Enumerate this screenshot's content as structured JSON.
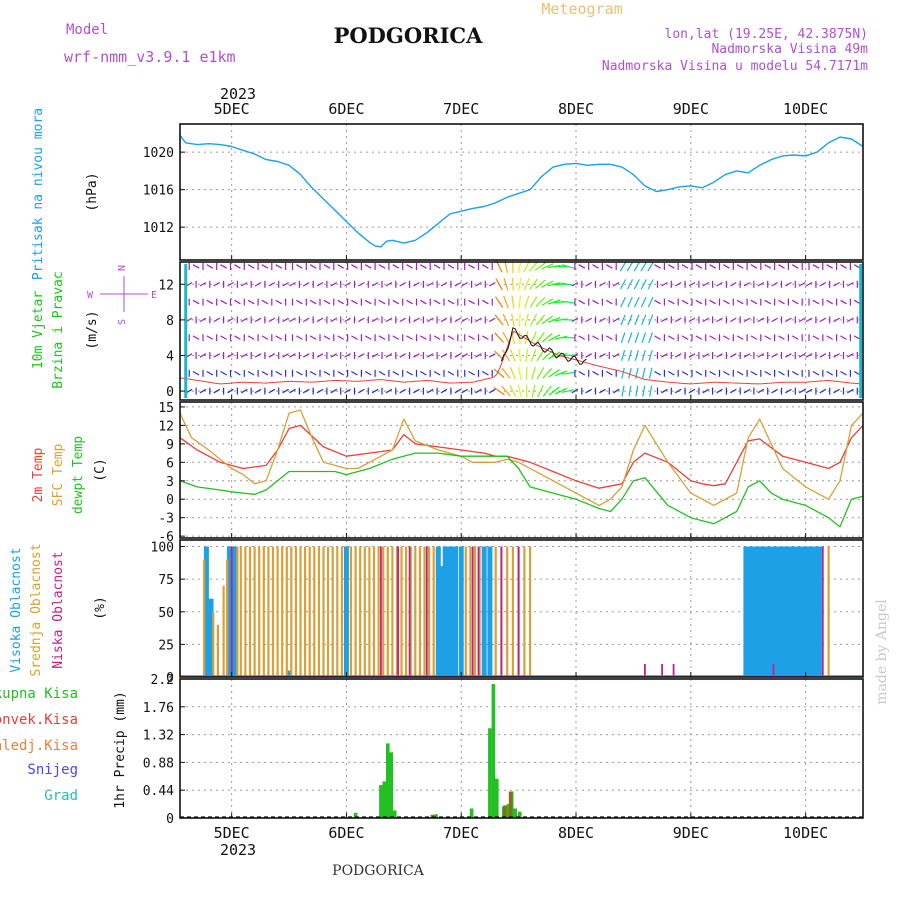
{
  "header": {
    "model_label": "Model",
    "model_name": "wrf-nmm_v3.9.1  e1km",
    "city": "PODGORICA",
    "meteogram": "Meteogram",
    "lonlat": "lon,lat (19.25E, 42.3875N)",
    "elevation": "Nadmorska Visina 49m",
    "model_elevation": "Nadmorska Visina u modelu 54.7171m",
    "year": "2023",
    "footer_city": "PODGORICA",
    "credit": "made by Angel"
  },
  "colors": {
    "pressure": "#1ea0e6",
    "temp2m": "#e8403a",
    "sfc": "#d8a038",
    "dewpt": "#22c022",
    "cloud_high": "#1ea0e6",
    "cloud_mid": "#d8a038",
    "cloud_low": "#c0208a",
    "precip": "#22c022",
    "wind_low": "#2a30d0",
    "wind_mid": "#a020c0"
  },
  "chart_data": [
    {
      "type": "line",
      "panel": "pressure",
      "labels": [
        "Pritisak na nivou mora",
        "(hPa)"
      ],
      "x_ticks": [
        "5DEC",
        "6DEC",
        "7DEC",
        "8DEC",
        "9DEC",
        "10DEC"
      ],
      "x_range": [
        4.55,
        10.5
      ],
      "ylim": [
        1008.5,
        1023
      ],
      "yticks": [
        1012,
        1016,
        1020
      ],
      "series": [
        {
          "x": [
            4.55,
            4.6,
            4.7,
            4.8,
            4.9,
            5.0,
            5.1,
            5.2,
            5.3,
            5.4,
            5.5,
            5.6,
            5.7,
            5.8,
            5.9,
            6.0,
            6.1,
            6.2,
            6.25,
            6.3,
            6.35,
            6.4,
            6.5,
            6.6,
            6.7,
            6.8,
            6.9,
            7.0,
            7.1,
            7.2,
            7.3,
            7.4,
            7.5,
            7.6,
            7.7,
            7.8,
            7.9,
            8.0,
            8.1,
            8.2,
            8.3,
            8.4,
            8.5,
            8.6,
            8.7,
            8.8,
            8.9,
            9.0,
            9.1,
            9.2,
            9.3,
            9.4,
            9.5,
            9.6,
            9.7,
            9.8,
            9.9,
            10.0,
            10.1,
            10.2,
            10.3,
            10.4,
            10.5
          ],
          "values": [
            1021.8,
            1021,
            1020.8,
            1020.9,
            1020.8,
            1020.6,
            1020.2,
            1019.8,
            1019.2,
            1019.0,
            1018.6,
            1017.6,
            1016.2,
            1015.0,
            1013.8,
            1012.6,
            1011.4,
            1010.4,
            1010.0,
            1009.9,
            1010.5,
            1010.6,
            1010.3,
            1010.6,
            1011.4,
            1012.4,
            1013.4,
            1013.7,
            1014.0,
            1014.2,
            1014.6,
            1015.2,
            1015.6,
            1016.0,
            1017.4,
            1018.4,
            1018.7,
            1018.8,
            1018.6,
            1018.7,
            1018.7,
            1018.4,
            1017.6,
            1016.4,
            1015.8,
            1016.0,
            1016.3,
            1016.4,
            1016.2,
            1016.8,
            1017.6,
            1018.0,
            1017.8,
            1018.6,
            1019.2,
            1019.6,
            1019.7,
            1019.6,
            1020.0,
            1021.0,
            1021.6,
            1021.4,
            1020.6
          ]
        }
      ]
    },
    {
      "type": "line",
      "panel": "wind",
      "labels": [
        "10m Vjetar",
        "Brzina i Pravac",
        "(m/s)"
      ],
      "compass": [
        "N",
        "W",
        "E",
        "S"
      ],
      "ylim": [
        -1,
        14.5
      ],
      "yticks": [
        0,
        4,
        8,
        12
      ],
      "series": [
        {
          "name": "speed",
          "x": [
            4.55,
            4.7,
            4.9,
            5.1,
            5.3,
            5.5,
            5.7,
            5.9,
            6.1,
            6.3,
            6.5,
            6.7,
            6.9,
            7.1,
            7.3,
            7.35,
            7.45,
            7.55,
            7.65,
            7.75,
            7.85,
            8.0,
            8.2,
            8.4,
            8.6,
            8.8,
            9.0,
            9.2,
            9.4,
            9.6,
            9.8,
            10.0,
            10.2,
            10.4,
            10.5
          ],
          "values": [
            1.5,
            1.2,
            0.8,
            1.0,
            0.9,
            1.1,
            1.0,
            1.2,
            1.1,
            1.3,
            1.0,
            1.2,
            0.9,
            1.0,
            1.6,
            3.0,
            6.8,
            6.0,
            5.2,
            4.6,
            4.0,
            3.5,
            2.8,
            2.2,
            1.3,
            1.0,
            0.8,
            1.0,
            0.9,
            0.8,
            1.0,
            1.0,
            1.2,
            0.9,
            0.8
          ]
        }
      ]
    },
    {
      "type": "line",
      "panel": "temperature",
      "labels": [
        "2m Temp",
        "SFC Temp",
        "dewpt Temp",
        "(C)"
      ],
      "ylim": [
        -6.3,
        15.8
      ],
      "yticks": [
        -6,
        -3,
        0,
        3,
        6,
        9,
        12,
        15
      ],
      "series": [
        {
          "name": "2m Temp",
          "x": [
            4.55,
            4.7,
            4.9,
            5.1,
            5.3,
            5.4,
            5.5,
            5.6,
            5.8,
            6.0,
            6.2,
            6.4,
            6.5,
            6.6,
            6.8,
            7.0,
            7.2,
            7.3,
            7.4,
            7.6,
            7.8,
            8.0,
            8.2,
            8.4,
            8.5,
            8.6,
            8.8,
            9.0,
            9.1,
            9.2,
            9.3,
            9.4,
            9.5,
            9.6,
            9.8,
            10.0,
            10.2,
            10.3,
            10.4,
            10.5
          ],
          "values": [
            10,
            8,
            6,
            5,
            5.5,
            8,
            11.5,
            12,
            8.5,
            7,
            7.5,
            8,
            10.5,
            9,
            8.5,
            8,
            7.5,
            7,
            7,
            6,
            4.5,
            3,
            1.8,
            2.5,
            6,
            7.5,
            6,
            3,
            2.5,
            2.2,
            2.5,
            6,
            9.5,
            9.8,
            7,
            6,
            5,
            6,
            10,
            12
          ]
        },
        {
          "name": "SFC Temp",
          "x": [
            4.55,
            4.65,
            4.8,
            5.0,
            5.1,
            5.2,
            5.3,
            5.4,
            5.5,
            5.6,
            5.7,
            5.8,
            6.0,
            6.1,
            6.2,
            6.3,
            6.4,
            6.5,
            6.6,
            6.8,
            7.0,
            7.1,
            7.3,
            7.4,
            7.5,
            7.7,
            7.9,
            8.0,
            8.1,
            8.2,
            8.3,
            8.4,
            8.5,
            8.6,
            8.8,
            9.0,
            9.1,
            9.2,
            9.3,
            9.4,
            9.5,
            9.6,
            9.7,
            9.8,
            10.0,
            10.1,
            10.2,
            10.3,
            10.4,
            10.5
          ],
          "values": [
            14,
            10,
            8,
            5,
            4,
            2.5,
            3,
            8,
            14,
            14.5,
            10,
            6,
            5,
            5,
            6,
            7,
            8,
            13,
            9.5,
            8,
            7,
            6,
            6,
            6.5,
            6,
            4,
            2,
            1,
            0,
            -1,
            0,
            2,
            8,
            12,
            6,
            1,
            0,
            -1,
            0,
            1,
            10,
            13,
            9,
            5,
            2,
            1,
            0,
            3,
            12,
            14
          ]
        },
        {
          "name": "dewpt Temp",
          "x": [
            4.55,
            4.7,
            4.9,
            5.0,
            5.1,
            5.2,
            5.3,
            5.4,
            5.5,
            5.7,
            5.9,
            6.0,
            6.2,
            6.4,
            6.6,
            6.8,
            7.0,
            7.2,
            7.4,
            7.5,
            7.6,
            7.8,
            8.0,
            8.2,
            8.3,
            8.4,
            8.5,
            8.6,
            8.8,
            9.0,
            9.2,
            9.4,
            9.5,
            9.6,
            9.7,
            9.8,
            10.0,
            10.2,
            10.3,
            10.4,
            10.5
          ],
          "values": [
            3,
            2,
            1.5,
            1.2,
            1,
            0.8,
            1.5,
            3,
            4.5,
            4.5,
            4.5,
            4,
            5,
            6.5,
            7.5,
            7.5,
            7,
            7,
            7,
            5,
            2,
            1,
            0,
            -1.5,
            -2,
            0,
            3,
            3.5,
            -1,
            -3,
            -4,
            -2,
            2,
            3,
            1,
            0,
            -1,
            -3,
            -4.5,
            0,
            0.5
          ]
        }
      ]
    },
    {
      "type": "bar",
      "panel": "cloudiness",
      "labels": [
        "Visoka Oblacnost",
        "Srednja Oblacnost",
        "Niska Oblacnost",
        "(%)"
      ],
      "ylim": [
        0,
        105
      ],
      "yticks": [
        0,
        25,
        50,
        75,
        100
      ],
      "series": [
        {
          "name": "Visoka Oblacnost",
          "x": [
            4.78,
            4.82,
            4.98,
            5.02,
            5.5,
            6.0,
            6.8,
            6.83,
            6.86,
            6.89,
            6.92,
            6.95,
            7.0,
            7.2,
            7.25,
            9.48,
            9.52,
            9.56,
            9.6,
            9.64,
            9.68,
            9.72,
            9.76,
            9.8,
            9.84,
            9.88,
            9.92,
            9.96,
            10.0,
            10.04,
            10.08,
            10.12
          ],
          "values": [
            100,
            60,
            100,
            100,
            5,
            100,
            100,
            85,
            100,
            100,
            100,
            100,
            100,
            100,
            100,
            100,
            100,
            100,
            100,
            100,
            100,
            100,
            100,
            100,
            100,
            100,
            100,
            100,
            100,
            100,
            100,
            100
          ]
        },
        {
          "name": "Srednja Oblacnost",
          "x": [
            4.76,
            4.84,
            4.88,
            4.93,
            4.96,
            5.05,
            5.08,
            5.12,
            5.16,
            5.2,
            5.24,
            5.28,
            5.32,
            5.36,
            5.4,
            5.44,
            5.48,
            5.52,
            5.56,
            5.6,
            5.64,
            5.68,
            5.72,
            5.76,
            5.8,
            5.84,
            5.88,
            5.92,
            5.96,
            6.04,
            6.08,
            6.12,
            6.16,
            6.2,
            6.24,
            6.28,
            6.32,
            6.36,
            6.4,
            6.44,
            6.48,
            6.52,
            6.56,
            6.6,
            6.64,
            6.68,
            6.72,
            6.76,
            7.04,
            7.08,
            7.12,
            7.16,
            7.3,
            7.35,
            7.4,
            7.45,
            7.5,
            7.55,
            7.6,
            10.2
          ],
          "values": [
            90,
            50,
            40,
            70,
            90,
            100,
            100,
            100,
            100,
            100,
            100,
            100,
            100,
            100,
            100,
            100,
            100,
            100,
            100,
            100,
            100,
            100,
            100,
            100,
            100,
            100,
            100,
            100,
            100,
            100,
            100,
            100,
            100,
            100,
            100,
            100,
            100,
            100,
            100,
            100,
            100,
            100,
            100,
            100,
            100,
            100,
            100,
            100,
            100,
            100,
            100,
            100,
            100,
            100,
            100,
            100,
            100,
            100,
            100,
            100
          ]
        },
        {
          "name": "Niska Oblacnost",
          "x": [
            5.0,
            6.3,
            6.45,
            6.55,
            6.7,
            7.1,
            7.15,
            7.35,
            7.5,
            8.6,
            8.75,
            8.85,
            9.72,
            10.15
          ],
          "values": [
            100,
            100,
            100,
            100,
            100,
            100,
            100,
            100,
            100,
            10,
            10,
            10,
            10,
            100
          ]
        }
      ]
    },
    {
      "type": "bar",
      "panel": "precipitation",
      "labels": [
        "Ukupna Kisa",
        "Konvek.Kisa",
        "Zaledj.Kisa",
        "Snijeg",
        "Grad",
        "1hr Precip (mm)"
      ],
      "ylim": [
        0,
        2.2
      ],
      "yticks": [
        0,
        0.44,
        0.88,
        1.32,
        1.76,
        2.2
      ],
      "series": [
        {
          "name": "Ukupna Kisa",
          "x": [
            6.08,
            6.3,
            6.33,
            6.36,
            6.39,
            6.42,
            6.78,
            7.09,
            7.25,
            7.28,
            7.31,
            7.37,
            7.41,
            7.44,
            7.47,
            7.51
          ],
          "values": [
            0.08,
            0.52,
            0.58,
            1.18,
            1.04,
            0.12,
            0.06,
            0.15,
            1.42,
            2.12,
            0.62,
            0.18,
            0.22,
            0.42,
            0.15,
            0.1
          ]
        },
        {
          "name": "Zaledj.Kisa",
          "x": [
            6.75,
            7.38,
            7.43
          ],
          "values": [
            0.05,
            0.2,
            0.42
          ]
        }
      ]
    }
  ]
}
